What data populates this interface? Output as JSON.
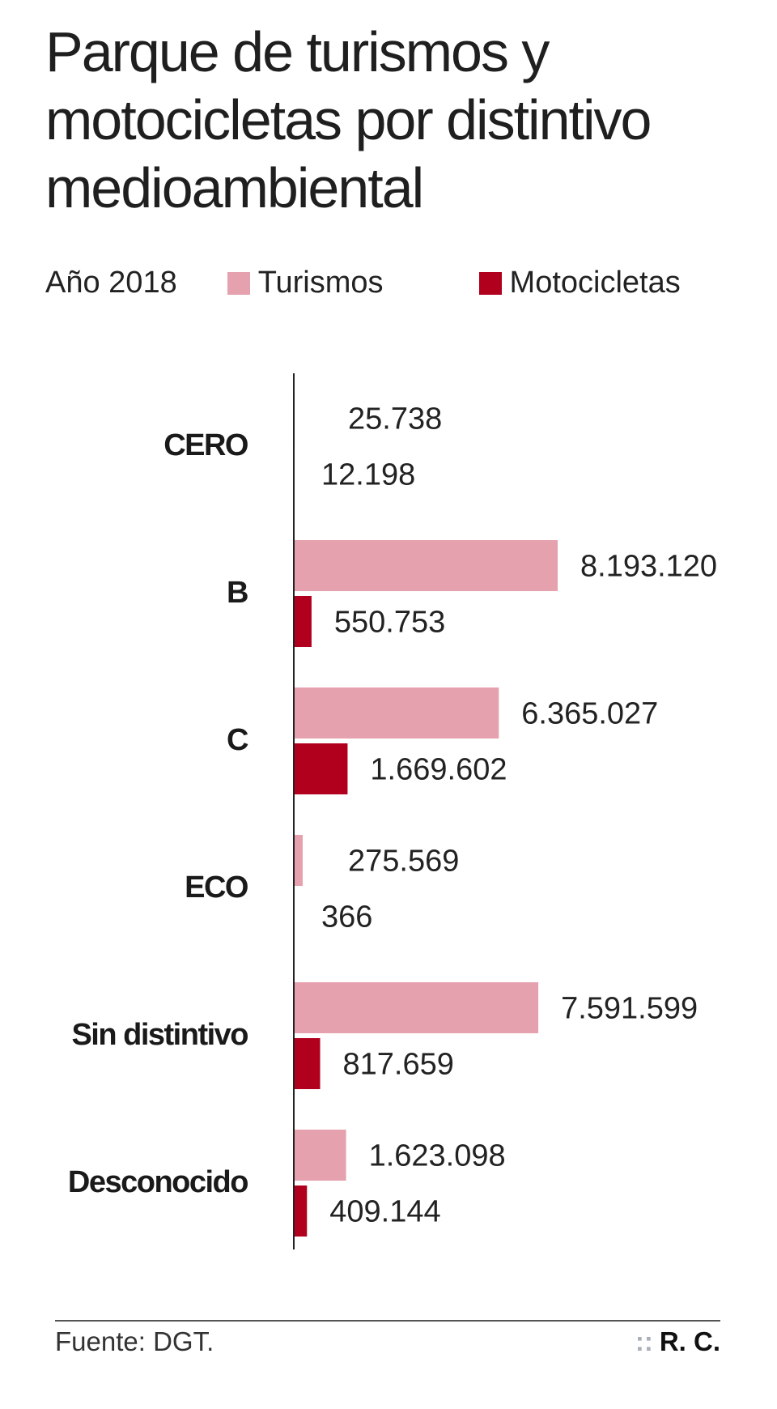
{
  "title": "Parque de turismos y motocicletas por distintivo medioambiental",
  "source": "Fuente: DGT.",
  "credit": "R. C.",
  "credit_dots": "::",
  "chart_data": {
    "type": "bar",
    "orientation": "horizontal",
    "title": "Parque de turismos y motocicletas por distintivo medioambiental",
    "subtitle": "Año 2018",
    "categories": [
      "CERO",
      "B",
      "C",
      "ECO",
      "Sin distintivo",
      "Desconocido"
    ],
    "series": [
      {
        "name": "Turismos",
        "color": "#e5a1ae",
        "values": [
          25738,
          8193120,
          6365027,
          275569,
          7591599,
          1623098
        ],
        "labels": [
          "25.738",
          "8.193.120",
          "6.365.027",
          "275.569",
          "7.591.599",
          "1.623.098"
        ]
      },
      {
        "name": "Motocicletas",
        "color": "#b0001e",
        "values": [
          12198,
          550753,
          1669602,
          366,
          817659,
          409144
        ],
        "labels": [
          "12.198",
          "550.753",
          "1.669.602",
          "366",
          "817.659",
          "409.144"
        ]
      }
    ],
    "xlim": [
      0,
      8193120
    ],
    "grid": false,
    "legend": "top"
  }
}
